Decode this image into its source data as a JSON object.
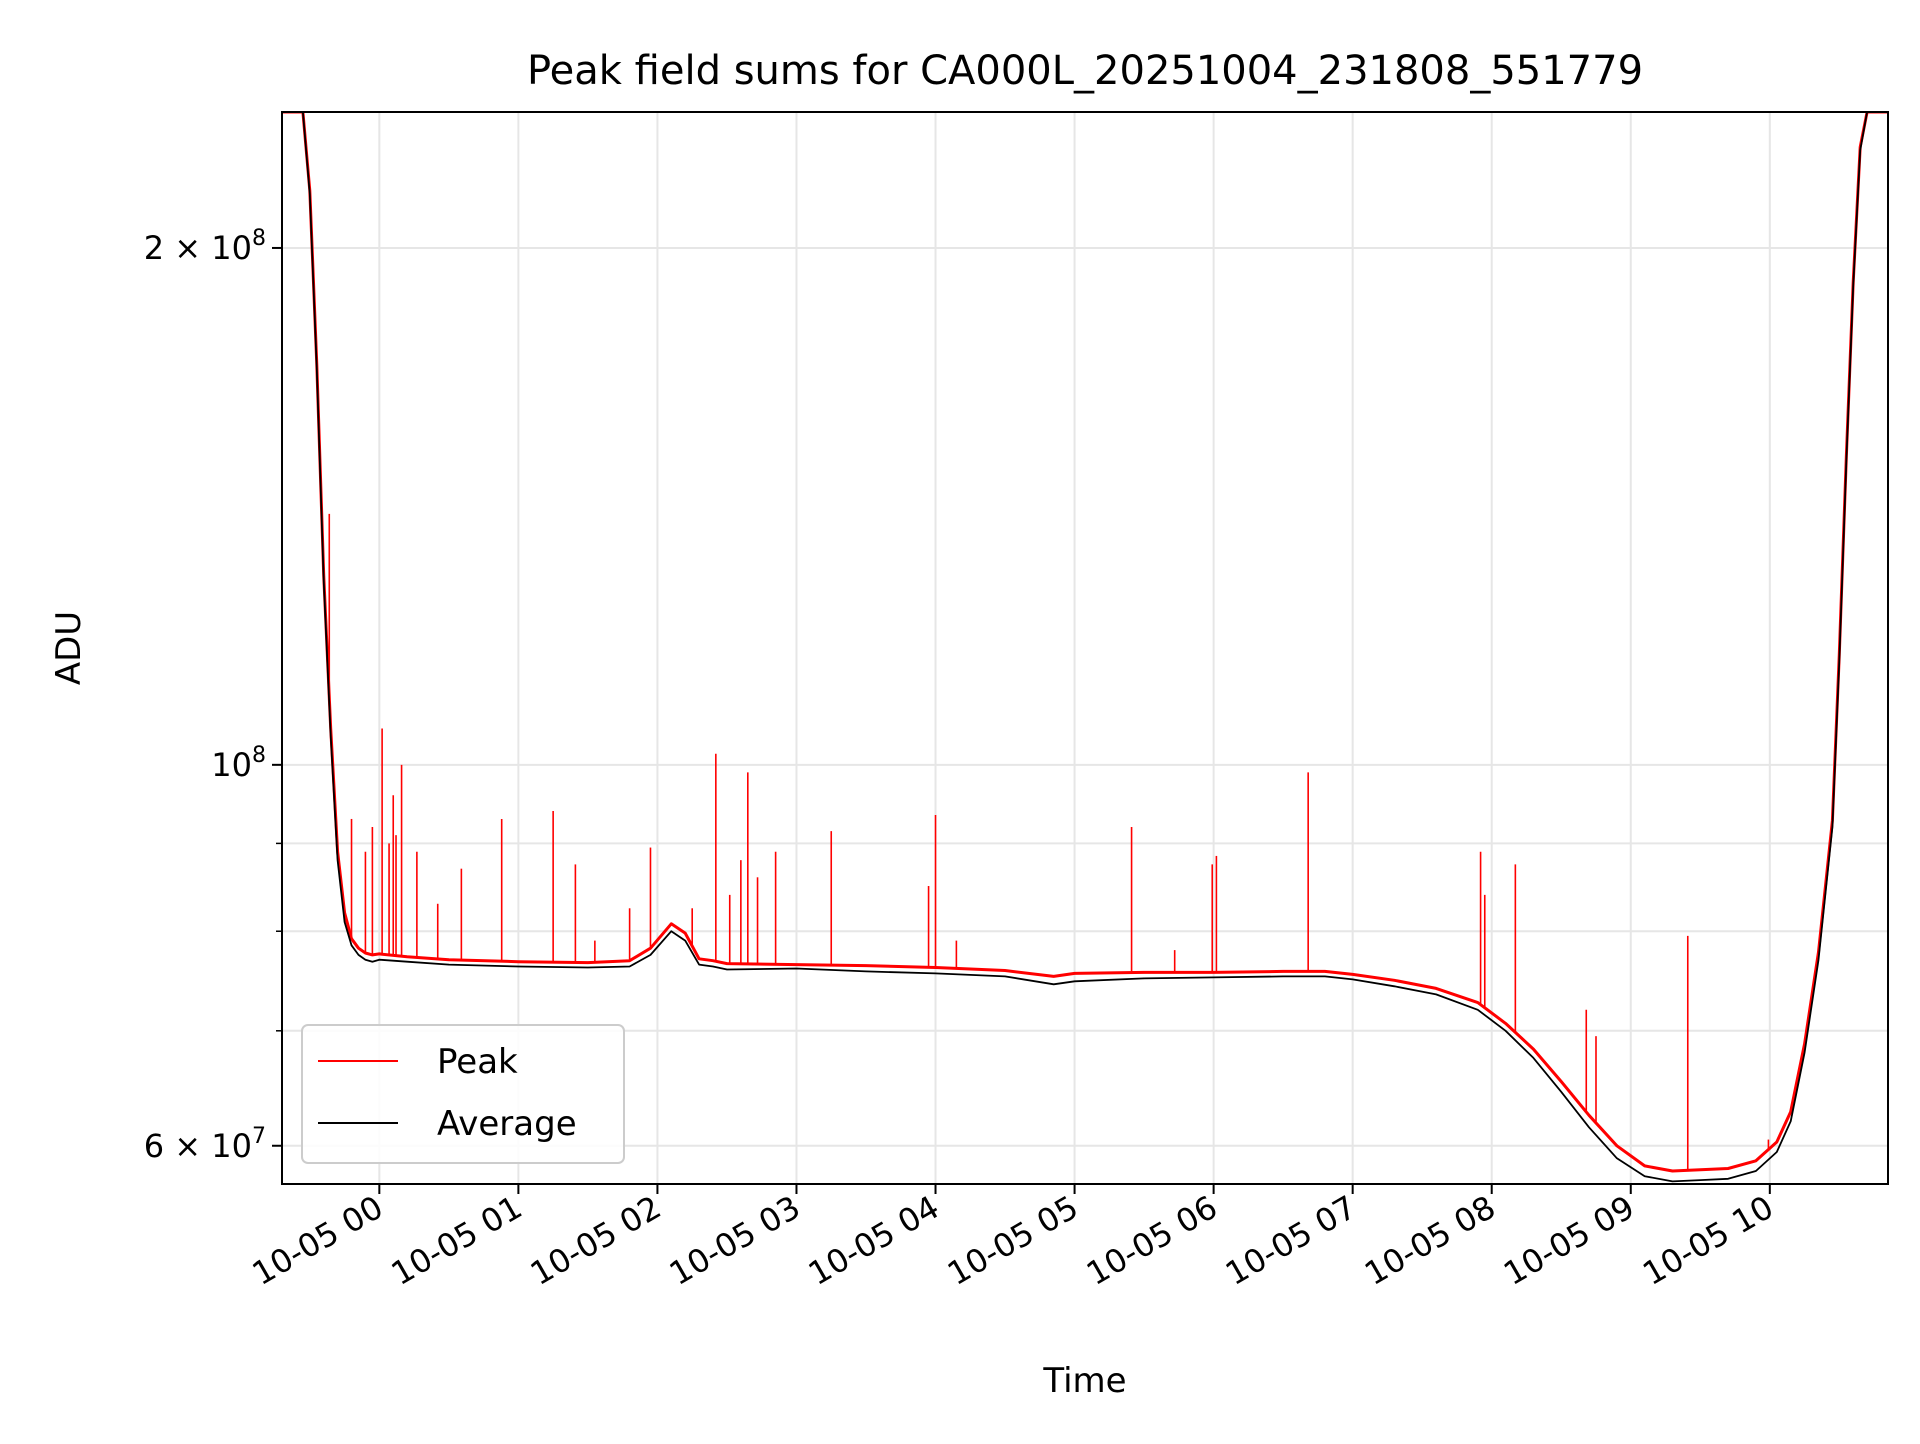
{
  "chart_data": {
    "type": "line",
    "title": "Peak field sums for CA000L_20251004_231808_551779",
    "xlabel": "Time",
    "ylabel": "ADU",
    "yscale": "log",
    "xlim": [
      -0.7,
      10.85
    ],
    "ylim": [
      57000000,
      240000000
    ],
    "x_unit": "hours since 10-05 00:00",
    "x_ticks": [
      {
        "value": 0,
        "label": "10-05 00"
      },
      {
        "value": 1,
        "label": "10-05 01"
      },
      {
        "value": 2,
        "label": "10-05 02"
      },
      {
        "value": 3,
        "label": "10-05 03"
      },
      {
        "value": 4,
        "label": "10-05 04"
      },
      {
        "value": 5,
        "label": "10-05 05"
      },
      {
        "value": 6,
        "label": "10-05 06"
      },
      {
        "value": 7,
        "label": "10-05 07"
      },
      {
        "value": 8,
        "label": "10-05 08"
      },
      {
        "value": 9,
        "label": "10-05 09"
      },
      {
        "value": 10,
        "label": "10-05 10"
      }
    ],
    "y_ticks": [
      {
        "value": 60000000,
        "base": "6 × 10",
        "exp": "7"
      },
      {
        "value": 100000000,
        "base": "10",
        "exp": "8"
      },
      {
        "value": 200000000,
        "base": "2 × 10",
        "exp": "8"
      }
    ],
    "y_minor_ticks": [
      70000000,
      80000000,
      90000000
    ],
    "grid": true,
    "legend": {
      "position": "lower-left",
      "entries": [
        {
          "label": "Peak",
          "color": "#ff0000"
        },
        {
          "label": "Average",
          "color": "#000000"
        }
      ]
    },
    "series": [
      {
        "name": "Average",
        "color": "#000000",
        "x": [
          -0.7,
          -0.55,
          -0.5,
          -0.45,
          -0.4,
          -0.35,
          -0.3,
          -0.25,
          -0.2,
          -0.15,
          -0.1,
          -0.05,
          0,
          0.2,
          0.5,
          1.0,
          1.5,
          1.8,
          1.95,
          2.1,
          2.2,
          2.3,
          2.4,
          2.5,
          3.0,
          3.5,
          4.0,
          4.5,
          4.85,
          5.0,
          5.5,
          6.0,
          6.5,
          6.8,
          7.0,
          7.3,
          7.6,
          7.9,
          8.1,
          8.3,
          8.5,
          8.7,
          8.9,
          9.1,
          9.3,
          9.5,
          9.7,
          9.9,
          10.05,
          10.15,
          10.25,
          10.35,
          10.45,
          10.5,
          10.55,
          10.6,
          10.65,
          10.7,
          10.85
        ],
        "values": [
          240000000,
          240000000,
          215000000,
          170000000,
          128000000,
          104000000,
          88000000,
          81000000,
          78500000,
          77500000,
          77000000,
          76800000,
          77000000,
          76800000,
          76500000,
          76300000,
          76200000,
          76300000,
          77500000,
          80000000,
          79000000,
          76500000,
          76300000,
          76000000,
          76100000,
          75800000,
          75600000,
          75300000,
          74500000,
          74800000,
          75100000,
          75200000,
          75300000,
          75300000,
          75000000,
          74300000,
          73500000,
          72000000,
          70000000,
          67500000,
          64500000,
          61500000,
          59000000,
          57600000,
          57200000,
          57300000,
          57400000,
          58000000,
          59500000,
          62000000,
          68000000,
          77000000,
          92000000,
          115000000,
          150000000,
          190000000,
          228000000,
          240000000,
          240000000
        ]
      },
      {
        "name": "Peak",
        "color": "#ff0000",
        "x": [
          -0.7,
          -0.55,
          -0.5,
          -0.45,
          -0.4,
          -0.35,
          -0.3,
          -0.25,
          -0.2,
          -0.15,
          -0.1,
          -0.05,
          0,
          0.2,
          0.5,
          1.0,
          1.5,
          1.8,
          1.95,
          2.1,
          2.2,
          2.3,
          2.4,
          2.5,
          3.0,
          3.5,
          4.0,
          4.5,
          4.85,
          5.0,
          5.5,
          6.0,
          6.5,
          6.8,
          7.0,
          7.3,
          7.6,
          7.9,
          8.1,
          8.3,
          8.5,
          8.7,
          8.9,
          9.1,
          9.3,
          9.5,
          9.7,
          9.9,
          10.05,
          10.15,
          10.25,
          10.35,
          10.45,
          10.5,
          10.55,
          10.6,
          10.65,
          10.7,
          10.85
        ],
        "values": [
          240000000,
          240000000,
          216000000,
          171000000,
          129000000,
          105000000,
          89000000,
          82000000,
          79200000,
          78200000,
          77700000,
          77500000,
          77600000,
          77300000,
          77000000,
          76800000,
          76700000,
          76900000,
          78200000,
          80800000,
          79800000,
          77100000,
          76900000,
          76600000,
          76500000,
          76400000,
          76200000,
          75900000,
          75300000,
          75600000,
          75700000,
          75700000,
          75800000,
          75800000,
          75500000,
          74900000,
          74100000,
          72700000,
          70700000,
          68300000,
          65400000,
          62500000,
          60000000,
          58400000,
          58000000,
          58100000,
          58200000,
          58800000,
          60300000,
          62800000,
          68800000,
          77800000,
          92800000,
          116000000,
          151000000,
          191000000,
          229000000,
          240000000,
          240000000
        ]
      }
    ],
    "peak_spikes": [
      {
        "x": -0.36,
        "value": 140000000
      },
      {
        "x": -0.2,
        "value": 93000000
      },
      {
        "x": -0.1,
        "value": 89000000
      },
      {
        "x": -0.05,
        "value": 92000000
      },
      {
        "x": 0.02,
        "value": 105000000
      },
      {
        "x": 0.07,
        "value": 90000000
      },
      {
        "x": 0.1,
        "value": 96000000
      },
      {
        "x": 0.12,
        "value": 91000000
      },
      {
        "x": 0.16,
        "value": 100000000
      },
      {
        "x": 0.27,
        "value": 89000000
      },
      {
        "x": 0.42,
        "value": 83000000
      },
      {
        "x": 0.59,
        "value": 87000000
      },
      {
        "x": 0.88,
        "value": 93000000
      },
      {
        "x": 1.25,
        "value": 94000000
      },
      {
        "x": 1.41,
        "value": 87500000
      },
      {
        "x": 1.55,
        "value": 79000000
      },
      {
        "x": 1.8,
        "value": 82500000
      },
      {
        "x": 1.95,
        "value": 89500000
      },
      {
        "x": 2.25,
        "value": 82500000
      },
      {
        "x": 2.42,
        "value": 101500000
      },
      {
        "x": 2.52,
        "value": 84000000
      },
      {
        "x": 2.6,
        "value": 88000000
      },
      {
        "x": 2.65,
        "value": 99000000
      },
      {
        "x": 2.72,
        "value": 86000000
      },
      {
        "x": 2.85,
        "value": 89000000
      },
      {
        "x": 3.25,
        "value": 91500000
      },
      {
        "x": 3.95,
        "value": 85000000
      },
      {
        "x": 4.0,
        "value": 93500000
      },
      {
        "x": 4.15,
        "value": 79000000
      },
      {
        "x": 5.41,
        "value": 92000000
      },
      {
        "x": 5.72,
        "value": 78000000
      },
      {
        "x": 5.99,
        "value": 87500000
      },
      {
        "x": 6.02,
        "value": 88500000
      },
      {
        "x": 6.68,
        "value": 99000000
      },
      {
        "x": 7.92,
        "value": 89000000
      },
      {
        "x": 7.95,
        "value": 84000000
      },
      {
        "x": 8.17,
        "value": 87500000
      },
      {
        "x": 8.68,
        "value": 72000000
      },
      {
        "x": 8.75,
        "value": 69500000
      },
      {
        "x": 9.41,
        "value": 79500000
      },
      {
        "x": 9.99,
        "value": 60500000
      }
    ]
  }
}
